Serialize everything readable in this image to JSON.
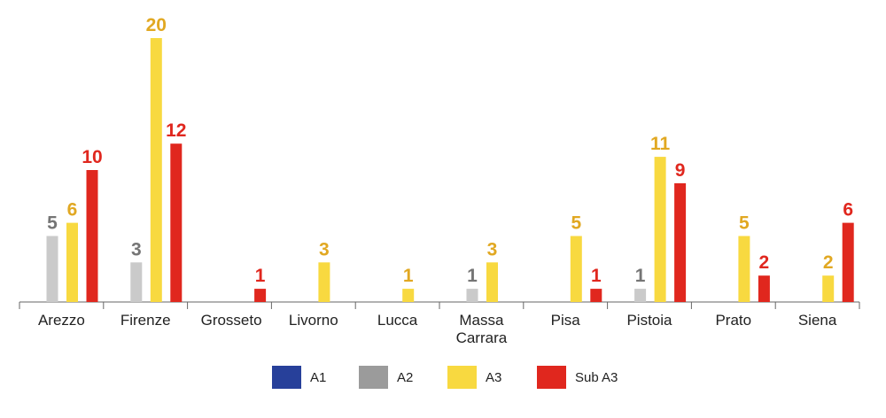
{
  "chart_data": {
    "type": "bar",
    "categories": [
      "Arezzo",
      "Firenze",
      "Grosseto",
      "Livorno",
      "Lucca",
      "Massa Carrara",
      "Pisa",
      "Pistoia",
      "Prato",
      "Siena"
    ],
    "series": [
      {
        "name": "A1",
        "color": "#27409a",
        "label_color": "#27409a",
        "values": [
          null,
          null,
          null,
          null,
          null,
          null,
          null,
          null,
          null,
          null
        ]
      },
      {
        "name": "A2",
        "color": "#cacaca",
        "legend_color": "#9b9b9b",
        "label_color": "#757575",
        "values": [
          5,
          3,
          null,
          null,
          null,
          1,
          null,
          1,
          null,
          null
        ]
      },
      {
        "name": "A3",
        "color": "#f8d940",
        "label_color": "#e1a822",
        "values": [
          6,
          20,
          null,
          3,
          1,
          3,
          5,
          11,
          5,
          2
        ]
      },
      {
        "name": "Sub A3",
        "color": "#e0271e",
        "label_color": "#e0271e",
        "values": [
          10,
          12,
          1,
          null,
          null,
          null,
          1,
          9,
          2,
          6
        ]
      }
    ],
    "ylim": [
      0,
      20
    ],
    "legend": "bottom"
  }
}
